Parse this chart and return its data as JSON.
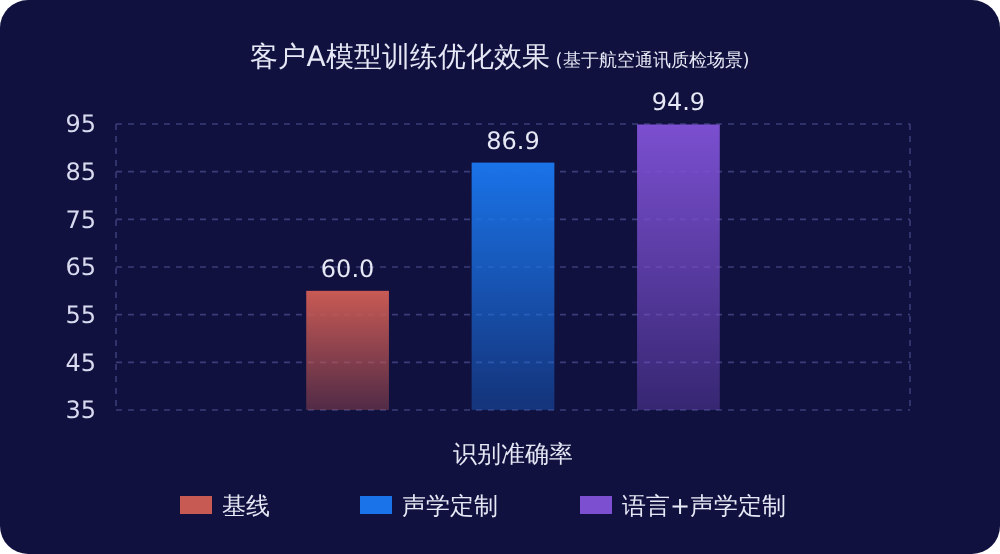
{
  "chart_data": {
    "type": "bar",
    "title": "客户A模型训练优化效果",
    "subtitle": "(基于航空通讯质检场景)",
    "categories": [
      "识别准确率"
    ],
    "series": [
      {
        "name": "基线",
        "color": "#c85a54",
        "values": [
          60.0
        ],
        "value_labels": [
          "60.0"
        ]
      },
      {
        "name": "声学定制",
        "color": "#1a73e8",
        "values": [
          86.9
        ],
        "value_labels": [
          "86.9"
        ]
      },
      {
        "name": "语言+声学定制",
        "color": "#7b4fd0",
        "values": [
          94.9
        ],
        "value_labels": [
          "94.9"
        ]
      }
    ],
    "ylim": [
      35,
      95
    ],
    "yticks": [
      35,
      45,
      55,
      65,
      75,
      85,
      95
    ],
    "grid": "y",
    "legend": "bottom"
  }
}
